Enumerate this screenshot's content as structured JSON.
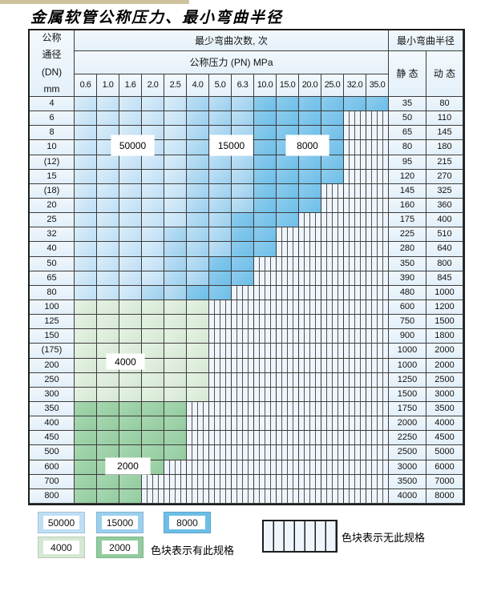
{
  "page": {
    "title": "金属软管公称压力、最小弯曲半径"
  },
  "table": {
    "dn_header_lines": [
      "公称",
      "通径",
      "(DN)",
      "mm"
    ],
    "cycles_header": "最少弯曲次数, 次",
    "pressure_header": "公称压力 (PN) MPa",
    "radius_header": "最小弯曲半径",
    "static_header": "静 态",
    "dynamic_header": "动 态",
    "pressure_columns": [
      "0.6",
      "1.0",
      "1.6",
      "2.0",
      "2.5",
      "4.0",
      "5.0",
      "6.3",
      "10.0",
      "15.0",
      "20.0",
      "25.0",
      "32.0",
      "35.0"
    ],
    "rows": [
      {
        "dn": "4",
        "zones": [
          [
            "b1",
            5
          ],
          [
            "b2",
            3
          ],
          [
            "b3",
            6
          ]
        ],
        "static": "35",
        "dynamic": "80"
      },
      {
        "dn": "6",
        "zones": [
          [
            "b1",
            5
          ],
          [
            "b2",
            3
          ],
          [
            "b3",
            4
          ],
          [
            "n",
            2
          ]
        ],
        "static": "50",
        "dynamic": "110"
      },
      {
        "dn": "8",
        "zones": [
          [
            "b1",
            5
          ],
          [
            "b2",
            3
          ],
          [
            "b3",
            4
          ],
          [
            "n",
            2
          ]
        ],
        "static": "65",
        "dynamic": "145"
      },
      {
        "dn": "10",
        "zones": [
          [
            "b1",
            5
          ],
          [
            "b2",
            3
          ],
          [
            "b3",
            4
          ],
          [
            "n",
            2
          ]
        ],
        "static": "80",
        "dynamic": "180"
      },
      {
        "dn": "(12)",
        "zones": [
          [
            "b1",
            5
          ],
          [
            "b2",
            3
          ],
          [
            "b3",
            4
          ],
          [
            "n",
            2
          ]
        ],
        "static": "95",
        "dynamic": "215"
      },
      {
        "dn": "15",
        "zones": [
          [
            "b1",
            5
          ],
          [
            "b2",
            3
          ],
          [
            "b3",
            4
          ],
          [
            "n",
            2
          ]
        ],
        "static": "120",
        "dynamic": "270"
      },
      {
        "dn": "(18)",
        "zones": [
          [
            "b1",
            5
          ],
          [
            "b2",
            3
          ],
          [
            "b3",
            3
          ],
          [
            "n",
            3
          ]
        ],
        "static": "145",
        "dynamic": "325"
      },
      {
        "dn": "20",
        "zones": [
          [
            "b1",
            5
          ],
          [
            "b2",
            3
          ],
          [
            "b3",
            3
          ],
          [
            "n",
            3
          ]
        ],
        "static": "160",
        "dynamic": "360"
      },
      {
        "dn": "25",
        "zones": [
          [
            "b1",
            5
          ],
          [
            "b2",
            2
          ],
          [
            "b3",
            3
          ],
          [
            "n",
            4
          ]
        ],
        "static": "175",
        "dynamic": "400"
      },
      {
        "dn": "32",
        "zones": [
          [
            "b1",
            4
          ],
          [
            "b2",
            3
          ],
          [
            "b3",
            2
          ],
          [
            "n",
            5
          ]
        ],
        "static": "225",
        "dynamic": "510"
      },
      {
        "dn": "40",
        "zones": [
          [
            "b1",
            4
          ],
          [
            "b2",
            3
          ],
          [
            "b3",
            2
          ],
          [
            "n",
            5
          ]
        ],
        "static": "280",
        "dynamic": "640"
      },
      {
        "dn": "50",
        "zones": [
          [
            "b1",
            4
          ],
          [
            "b2",
            2
          ],
          [
            "b3",
            2
          ],
          [
            "n",
            6
          ]
        ],
        "static": "350",
        "dynamic": "800"
      },
      {
        "dn": "65",
        "zones": [
          [
            "b1",
            4
          ],
          [
            "b2",
            2
          ],
          [
            "b3",
            2
          ],
          [
            "n",
            6
          ]
        ],
        "static": "390",
        "dynamic": "845"
      },
      {
        "dn": "80",
        "zones": [
          [
            "b1",
            3
          ],
          [
            "b2",
            2
          ],
          [
            "b3",
            2
          ],
          [
            "n",
            7
          ]
        ],
        "static": "480",
        "dynamic": "1000"
      },
      {
        "dn": "100",
        "zones": [
          [
            "g1",
            6
          ],
          [
            "n",
            8
          ]
        ],
        "static": "600",
        "dynamic": "1200"
      },
      {
        "dn": "125",
        "zones": [
          [
            "g1",
            6
          ],
          [
            "n",
            8
          ]
        ],
        "static": "750",
        "dynamic": "1500"
      },
      {
        "dn": "150",
        "zones": [
          [
            "g1",
            6
          ],
          [
            "n",
            8
          ]
        ],
        "static": "900",
        "dynamic": "1800"
      },
      {
        "dn": "(175)",
        "zones": [
          [
            "g1",
            6
          ],
          [
            "n",
            8
          ]
        ],
        "static": "1000",
        "dynamic": "2000"
      },
      {
        "dn": "200",
        "zones": [
          [
            "g1",
            6
          ],
          [
            "n",
            8
          ]
        ],
        "static": "1000",
        "dynamic": "2000"
      },
      {
        "dn": "250",
        "zones": [
          [
            "g1",
            6
          ],
          [
            "n",
            8
          ]
        ],
        "static": "1250",
        "dynamic": "2500"
      },
      {
        "dn": "300",
        "zones": [
          [
            "g1",
            6
          ],
          [
            "n",
            8
          ]
        ],
        "static": "1500",
        "dynamic": "3000"
      },
      {
        "dn": "350",
        "zones": [
          [
            "g2",
            5
          ],
          [
            "n",
            9
          ]
        ],
        "static": "1750",
        "dynamic": "3500"
      },
      {
        "dn": "400",
        "zones": [
          [
            "g2",
            5
          ],
          [
            "n",
            9
          ]
        ],
        "static": "2000",
        "dynamic": "4000"
      },
      {
        "dn": "450",
        "zones": [
          [
            "g2",
            5
          ],
          [
            "n",
            9
          ]
        ],
        "static": "2250",
        "dynamic": "4500"
      },
      {
        "dn": "500",
        "zones": [
          [
            "g2",
            5
          ],
          [
            "n",
            9
          ]
        ],
        "static": "2500",
        "dynamic": "5000"
      },
      {
        "dn": "600",
        "zones": [
          [
            "g2",
            4
          ],
          [
            "n",
            10
          ]
        ],
        "static": "3000",
        "dynamic": "6000"
      },
      {
        "dn": "700",
        "zones": [
          [
            "g2",
            3
          ],
          [
            "n",
            11
          ]
        ],
        "static": "3500",
        "dynamic": "7000"
      },
      {
        "dn": "800",
        "zones": [
          [
            "g2",
            3
          ],
          [
            "n",
            11
          ]
        ],
        "static": "4000",
        "dynamic": "8000"
      }
    ]
  },
  "zone_labels": {
    "c50000": "50000",
    "c15000": "15000",
    "c8000": "8000",
    "c4000": "4000",
    "c2000": "2000"
  },
  "legend": {
    "has_spec_text": "色块表示有此规格",
    "no_spec_text": "色块表示无此规格"
  },
  "colors": {
    "blue_50000": "#bedef4",
    "blue_15000": "#9bcfee",
    "blue_8000": "#6cbee8",
    "green_4000": "#d5e8d3",
    "green_2000": "#92cc9e",
    "hatch_bg": "#eff5fc",
    "grid_line": "#3c3c3c",
    "header_bg": "#e4f0fa",
    "top_strip": "#cdc29b"
  }
}
